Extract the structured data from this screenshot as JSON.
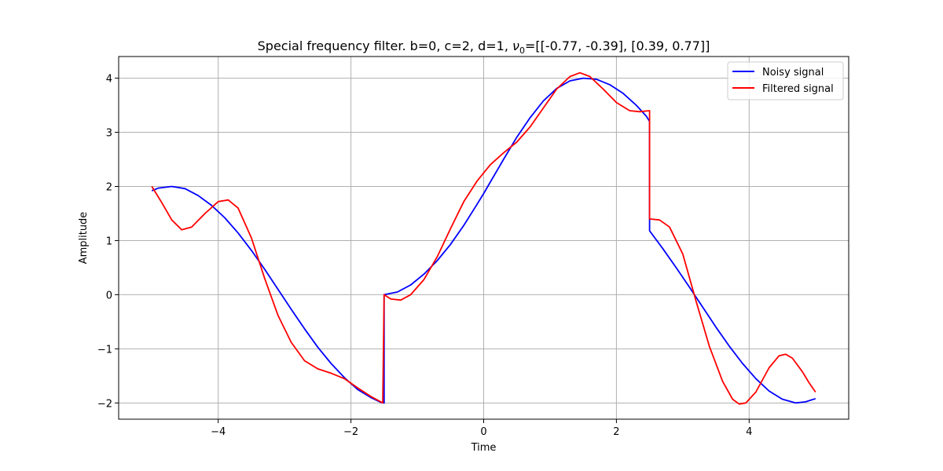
{
  "chart_data": {
    "type": "line",
    "title": "Special frequency filter. b=0, c=2, d=1, ν₀=[[-0.77, -0.39], [0.39, 0.77]]",
    "title_parts": {
      "prefix": "Special frequency filter. b=0, c=2, d=1, ",
      "symbol": "ν",
      "subscript": "0",
      "suffix": "=[[-0.77, -0.39], [0.39, 0.77]]"
    },
    "xlabel": "Time",
    "ylabel": "Amplitude",
    "xlim": [
      -5.5,
      5.5
    ],
    "ylim": [
      -2.3,
      4.4
    ],
    "xticks": [
      -4,
      -2,
      0,
      2,
      4
    ],
    "xtick_labels": [
      "−4",
      "−2",
      "0",
      "2",
      "4"
    ],
    "yticks": [
      -2,
      -1,
      0,
      1,
      2,
      3,
      4
    ],
    "ytick_labels": [
      "−2",
      "−1",
      "0",
      "1",
      "2",
      "3",
      "4"
    ],
    "grid": true,
    "legend_position": "top-right",
    "series": [
      {
        "name": "Noisy signal",
        "color": "#0000ff",
        "points": [
          [
            -5.0,
            1.92
          ],
          [
            -4.9,
            1.97
          ],
          [
            -4.7,
            2.0
          ],
          [
            -4.5,
            1.96
          ],
          [
            -4.3,
            1.83
          ],
          [
            -4.1,
            1.65
          ],
          [
            -3.9,
            1.42
          ],
          [
            -3.7,
            1.14
          ],
          [
            -3.5,
            0.82
          ],
          [
            -3.3,
            0.47
          ],
          [
            -3.1,
            0.1
          ],
          [
            -2.9,
            -0.27
          ],
          [
            -2.7,
            -0.63
          ],
          [
            -2.5,
            -0.97
          ],
          [
            -2.3,
            -1.27
          ],
          [
            -2.1,
            -1.53
          ],
          [
            -1.9,
            -1.75
          ],
          [
            -1.7,
            -1.9
          ],
          [
            -1.55,
            -1.99
          ],
          [
            -1.5,
            -2.0
          ],
          [
            -1.5,
            0.0
          ],
          [
            -1.3,
            0.05
          ],
          [
            -1.1,
            0.18
          ],
          [
            -0.9,
            0.38
          ],
          [
            -0.7,
            0.63
          ],
          [
            -0.5,
            0.93
          ],
          [
            -0.3,
            1.28
          ],
          [
            -0.1,
            1.67
          ],
          [
            0.0,
            1.87
          ],
          [
            0.1,
            2.08
          ],
          [
            0.3,
            2.5
          ],
          [
            0.5,
            2.91
          ],
          [
            0.7,
            3.27
          ],
          [
            0.9,
            3.58
          ],
          [
            1.1,
            3.81
          ],
          [
            1.3,
            3.95
          ],
          [
            1.5,
            4.0
          ],
          [
            1.7,
            3.98
          ],
          [
            1.9,
            3.88
          ],
          [
            2.1,
            3.72
          ],
          [
            2.3,
            3.5
          ],
          [
            2.45,
            3.3
          ],
          [
            2.5,
            3.2
          ],
          [
            2.5,
            1.18
          ],
          [
            2.7,
            0.85
          ],
          [
            2.9,
            0.5
          ],
          [
            3.1,
            0.14
          ],
          [
            3.3,
            -0.23
          ],
          [
            3.5,
            -0.6
          ],
          [
            3.7,
            -0.95
          ],
          [
            3.9,
            -1.27
          ],
          [
            4.1,
            -1.55
          ],
          [
            4.3,
            -1.78
          ],
          [
            4.5,
            -1.93
          ],
          [
            4.7,
            -2.0
          ],
          [
            4.85,
            -1.98
          ],
          [
            5.0,
            -1.92
          ]
        ]
      },
      {
        "name": "Filtered signal",
        "color": "#ff0000",
        "points": [
          [
            -5.0,
            2.0
          ],
          [
            -4.85,
            1.7
          ],
          [
            -4.7,
            1.38
          ],
          [
            -4.55,
            1.2
          ],
          [
            -4.4,
            1.25
          ],
          [
            -4.2,
            1.5
          ],
          [
            -4.0,
            1.72
          ],
          [
            -3.85,
            1.75
          ],
          [
            -3.7,
            1.6
          ],
          [
            -3.5,
            1.05
          ],
          [
            -3.3,
            0.3
          ],
          [
            -3.1,
            -0.38
          ],
          [
            -2.9,
            -0.88
          ],
          [
            -2.7,
            -1.22
          ],
          [
            -2.5,
            -1.37
          ],
          [
            -2.3,
            -1.45
          ],
          [
            -2.1,
            -1.55
          ],
          [
            -1.9,
            -1.72
          ],
          [
            -1.7,
            -1.88
          ],
          [
            -1.52,
            -2.0
          ],
          [
            -1.5,
            0.0
          ],
          [
            -1.4,
            -0.08
          ],
          [
            -1.25,
            -0.1
          ],
          [
            -1.1,
            0.0
          ],
          [
            -0.9,
            0.28
          ],
          [
            -0.7,
            0.7
          ],
          [
            -0.5,
            1.22
          ],
          [
            -0.3,
            1.72
          ],
          [
            -0.1,
            2.1
          ],
          [
            0.1,
            2.4
          ],
          [
            0.3,
            2.62
          ],
          [
            0.5,
            2.82
          ],
          [
            0.7,
            3.1
          ],
          [
            0.9,
            3.45
          ],
          [
            1.1,
            3.8
          ],
          [
            1.3,
            4.03
          ],
          [
            1.45,
            4.1
          ],
          [
            1.6,
            4.03
          ],
          [
            1.8,
            3.8
          ],
          [
            2.0,
            3.55
          ],
          [
            2.2,
            3.4
          ],
          [
            2.35,
            3.38
          ],
          [
            2.5,
            3.4
          ],
          [
            2.5,
            1.4
          ],
          [
            2.65,
            1.38
          ],
          [
            2.8,
            1.25
          ],
          [
            3.0,
            0.75
          ],
          [
            3.2,
            -0.12
          ],
          [
            3.4,
            -0.95
          ],
          [
            3.6,
            -1.6
          ],
          [
            3.75,
            -1.93
          ],
          [
            3.85,
            -2.02
          ],
          [
            3.95,
            -2.0
          ],
          [
            4.1,
            -1.8
          ],
          [
            4.3,
            -1.35
          ],
          [
            4.45,
            -1.13
          ],
          [
            4.55,
            -1.1
          ],
          [
            4.65,
            -1.17
          ],
          [
            4.8,
            -1.42
          ],
          [
            4.9,
            -1.62
          ],
          [
            5.0,
            -1.8
          ]
        ]
      }
    ]
  }
}
